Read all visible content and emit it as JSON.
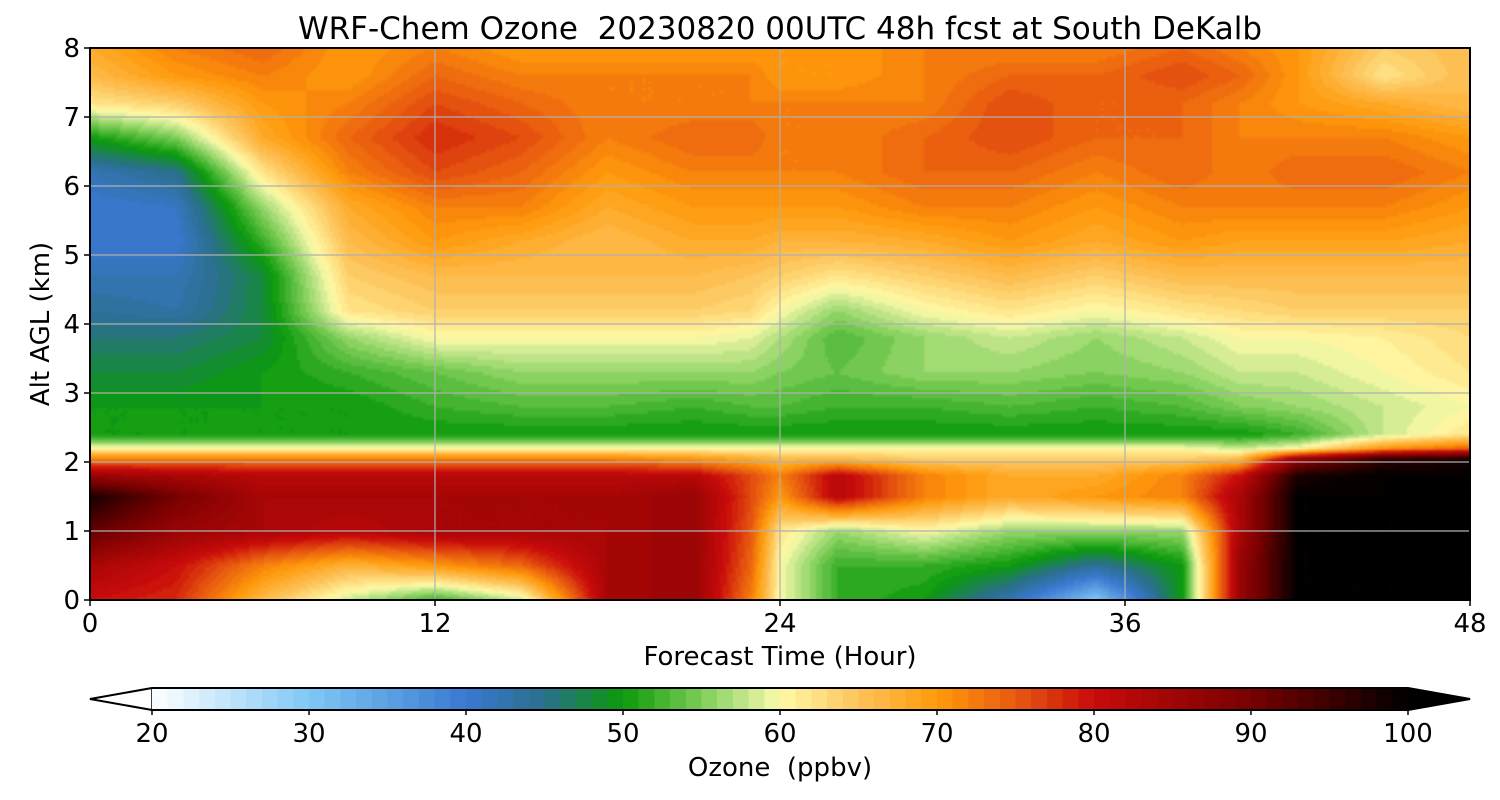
{
  "chart_data": {
    "type": "heatmap",
    "title": "WRF-Chem Ozone  20230820 00UTC 48h fcst at South DeKalb",
    "xlabel": "Forecast Time (Hour)",
    "ylabel": "Alt AGL (km)",
    "xlim": [
      0,
      48
    ],
    "ylim": [
      0,
      8
    ],
    "xticks": [
      0,
      12,
      24,
      36,
      48
    ],
    "yticks": [
      0,
      1,
      2,
      3,
      4,
      5,
      6,
      7,
      8
    ],
    "grid": true,
    "colorbar": {
      "label": "Ozone  (ppbv)",
      "range": [
        20,
        100
      ],
      "ticks": [
        20,
        30,
        40,
        50,
        60,
        70,
        80,
        90,
        100
      ],
      "extend": "both",
      "orientation": "horizontal",
      "placement": "bottom",
      "stops": [
        {
          "value": 20,
          "color": "#ffffff"
        },
        {
          "value": 30,
          "color": "#7fc8f5"
        },
        {
          "value": 40,
          "color": "#3a78d0"
        },
        {
          "value": 45,
          "color": "#2a6f8c"
        },
        {
          "value": 50,
          "color": "#0a9a0a"
        },
        {
          "value": 55,
          "color": "#7dcd57"
        },
        {
          "value": 58,
          "color": "#c8e890"
        },
        {
          "value": 60,
          "color": "#fffaa8"
        },
        {
          "value": 65,
          "color": "#fdc35a"
        },
        {
          "value": 70,
          "color": "#ff9a0a"
        },
        {
          "value": 75,
          "color": "#e85a10"
        },
        {
          "value": 80,
          "color": "#c80a0a"
        },
        {
          "value": 90,
          "color": "#780000"
        },
        {
          "value": 100,
          "color": "#000000"
        }
      ],
      "under_color": "#ffffff",
      "over_color": "#000000"
    },
    "x": [
      0,
      3,
      6,
      9,
      12,
      15,
      18,
      21,
      23,
      24,
      26,
      29,
      32,
      35,
      38,
      40,
      42,
      45,
      48
    ],
    "y": [
      0,
      0.5,
      1.0,
      1.5,
      1.8,
      2.05,
      2.2,
      2.4,
      2.8,
      3.3,
      3.8,
      4.2,
      4.7,
      5.2,
      5.7,
      6.2,
      6.7,
      7.2,
      7.6,
      8.0
    ],
    "values": [
      [
        80,
        78,
        66,
        58,
        52,
        58,
        84,
        86,
        72,
        60,
        52,
        50,
        42,
        30,
        50,
        86,
        100,
        100,
        100
      ],
      [
        84,
        80,
        72,
        67,
        70,
        74,
        84,
        86,
        74,
        60,
        52,
        52,
        50,
        44,
        50,
        86,
        100,
        100,
        100
      ],
      [
        92,
        86,
        84,
        82,
        84,
        84,
        84,
        86,
        75,
        62,
        56,
        60,
        56,
        56,
        56,
        84,
        100,
        100,
        100
      ],
      [
        98,
        90,
        84,
        84,
        84,
        84,
        84,
        86,
        76,
        70,
        82,
        72,
        68,
        70,
        72,
        84,
        100,
        100,
        100
      ],
      [
        86,
        84,
        82,
        82,
        82,
        82,
        82,
        82,
        76,
        72,
        82,
        72,
        68,
        68,
        72,
        80,
        98,
        100,
        100
      ],
      [
        72,
        72,
        72,
        72,
        72,
        72,
        72,
        70,
        68,
        66,
        66,
        64,
        64,
        64,
        64,
        66,
        86,
        96,
        98
      ],
      [
        60,
        60,
        60,
        60,
        60,
        60,
        60,
        60,
        60,
        60,
        60,
        60,
        60,
        60,
        60,
        58,
        60,
        70,
        74
      ],
      [
        50,
        50,
        50,
        50,
        50,
        50,
        50,
        50,
        50,
        50,
        50,
        50,
        50,
        50,
        50,
        50,
        52,
        58,
        62
      ],
      [
        50,
        50,
        50,
        50,
        52,
        53,
        53,
        52,
        53,
        53,
        52,
        52,
        53,
        52,
        53,
        55,
        56,
        58,
        60
      ],
      [
        48,
        48,
        50,
        52,
        54,
        56,
        56,
        56,
        56,
        55,
        54,
        56,
        56,
        55,
        56,
        58,
        58,
        60,
        62
      ],
      [
        46,
        46,
        48,
        56,
        60,
        60,
        60,
        60,
        59,
        57,
        53,
        56,
        58,
        56,
        58,
        60,
        60,
        61,
        63
      ],
      [
        44,
        43,
        48,
        62,
        64,
        64,
        64,
        64,
        63,
        60,
        56,
        60,
        62,
        60,
        62,
        63,
        64,
        64,
        64
      ],
      [
        42,
        42,
        48,
        64,
        66,
        66,
        66,
        66,
        65,
        64,
        62,
        64,
        66,
        64,
        66,
        66,
        66,
        66,
        66
      ],
      [
        40,
        40,
        52,
        66,
        70,
        68,
        66,
        68,
        68,
        67,
        67,
        68,
        70,
        68,
        70,
        69,
        69,
        69,
        68
      ],
      [
        40,
        41,
        56,
        68,
        72,
        72,
        68,
        70,
        70,
        70,
        70,
        72,
        72,
        70,
        72,
        72,
        72,
        72,
        70
      ],
      [
        42,
        45,
        62,
        72,
        76,
        74,
        70,
        72,
        72,
        72,
        72,
        74,
        74,
        72,
        74,
        72,
        74,
        74,
        72
      ],
      [
        50,
        55,
        68,
        74,
        78,
        76,
        72,
        74,
        74,
        72,
        72,
        74,
        76,
        74,
        74,
        72,
        72,
        72,
        70
      ],
      [
        62,
        64,
        70,
        72,
        76,
        74,
        72,
        72,
        72,
        72,
        72,
        72,
        76,
        74,
        74,
        72,
        70,
        68,
        66
      ],
      [
        66,
        70,
        72,
        70,
        74,
        72,
        72,
        72,
        72,
        70,
        70,
        72,
        74,
        74,
        76,
        74,
        70,
        62,
        66
      ],
      [
        68,
        72,
        74,
        70,
        72,
        70,
        70,
        70,
        70,
        70,
        70,
        72,
        72,
        72,
        74,
        72,
        70,
        64,
        66
      ]
    ]
  }
}
